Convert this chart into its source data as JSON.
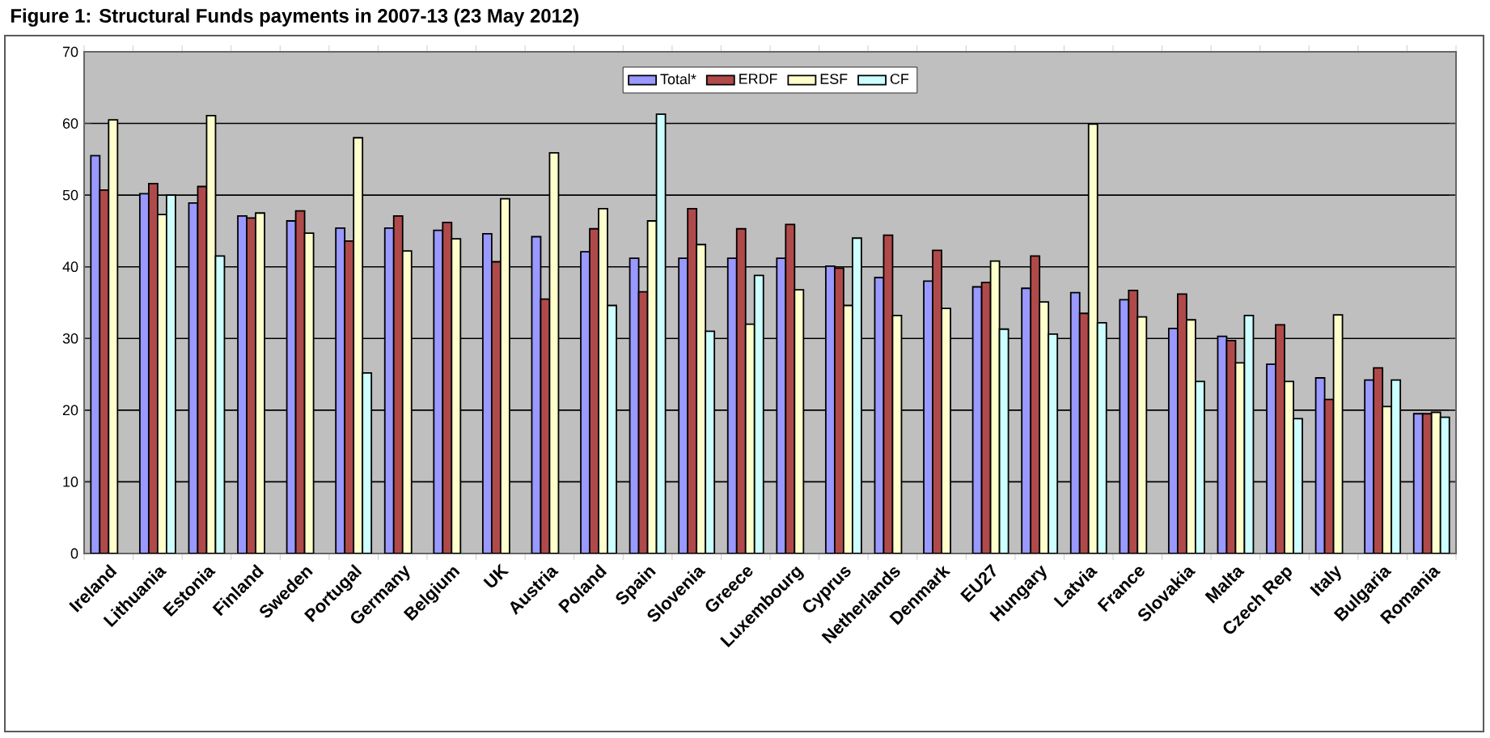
{
  "chart_data": {
    "type": "bar",
    "title": "Figure 1: Structural Funds payments in 2007-13 (23 May 2012)",
    "categories": [
      "Ireland",
      "Lithuania",
      "Estonia",
      "Finland",
      "Sweden",
      "Portugal",
      "Germany",
      "Belgium",
      "UK",
      "Austria",
      "Poland",
      "Spain",
      "Slovenia",
      "Greece",
      "Luxembourg",
      "Cyprus",
      "Netherlands",
      "Denmark",
      "EU27",
      "Hungary",
      "Latvia",
      "France",
      "Slovakia",
      "Malta",
      "Czech Rep",
      "Italy",
      "Bulgaria",
      "Romania"
    ],
    "series": [
      {
        "name": "Total*",
        "color": "#9999ff",
        "values": [
          55.5,
          50.2,
          48.9,
          47.1,
          46.4,
          45.4,
          45.4,
          45.1,
          44.6,
          44.2,
          42.1,
          41.2,
          41.2,
          41.2,
          41.2,
          40.1,
          38.5,
          38.0,
          37.2,
          37.0,
          36.4,
          35.4,
          31.4,
          30.3,
          26.4,
          24.5,
          24.2,
          19.5
        ]
      },
      {
        "name": "ERDF",
        "color": "#b04a4a",
        "values": [
          50.7,
          51.6,
          51.2,
          46.8,
          47.8,
          43.6,
          47.1,
          46.2,
          40.7,
          35.5,
          45.3,
          36.5,
          48.1,
          45.3,
          45.9,
          39.8,
          44.4,
          42.3,
          37.8,
          41.5,
          33.5,
          36.7,
          36.2,
          29.7,
          31.9,
          21.5,
          25.9,
          19.5
        ]
      },
      {
        "name": "ESF",
        "color": "#ffffcc",
        "values": [
          60.5,
          47.3,
          61.1,
          47.5,
          44.7,
          58.0,
          42.2,
          43.9,
          49.5,
          55.9,
          48.1,
          46.4,
          43.1,
          32.0,
          36.8,
          34.6,
          33.2,
          34.2,
          40.8,
          35.1,
          59.9,
          33.0,
          32.6,
          26.6,
          24.0,
          33.3,
          20.5,
          19.7
        ]
      },
      {
        "name": "CF",
        "color": "#ccffff",
        "values": [
          null,
          50.0,
          41.5,
          null,
          null,
          25.2,
          null,
          null,
          null,
          null,
          34.6,
          61.3,
          31.0,
          38.8,
          null,
          44.0,
          null,
          null,
          31.3,
          30.6,
          32.2,
          null,
          24.0,
          33.2,
          18.8,
          null,
          24.2,
          19.0
        ]
      }
    ],
    "ylim": [
      0,
      70
    ],
    "yticks": [
      0,
      10,
      20,
      30,
      40,
      50,
      60,
      70
    ],
    "grid": "y",
    "legend": "top"
  }
}
